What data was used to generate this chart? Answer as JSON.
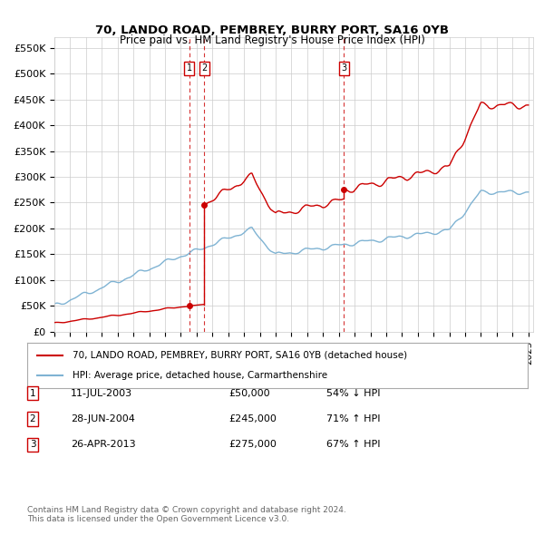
{
  "title": "70, LANDO ROAD, PEMBREY, BURRY PORT, SA16 0YB",
  "subtitle": "Price paid vs. HM Land Registry's House Price Index (HPI)",
  "ylim": [
    0,
    570000
  ],
  "yticks": [
    0,
    50000,
    100000,
    150000,
    200000,
    250000,
    300000,
    350000,
    400000,
    450000,
    500000,
    550000
  ],
  "ytick_labels": [
    "£0",
    "£50K",
    "£100K",
    "£150K",
    "£200K",
    "£250K",
    "£300K",
    "£350K",
    "£400K",
    "£450K",
    "£500K",
    "£550K"
  ],
  "sale_color": "#cc0000",
  "hpi_color": "#7fb3d3",
  "sale_label": "70, LANDO ROAD, PEMBREY, BURRY PORT, SA16 0YB (detached house)",
  "hpi_label": "HPI: Average price, detached house, Carmarthenshire",
  "transactions": [
    {
      "label": "1",
      "date": "11-JUL-2003",
      "price": 50000,
      "pct": "54%",
      "dir": "↓",
      "x": 2003.53
    },
    {
      "label": "2",
      "date": "28-JUN-2004",
      "price": 245000,
      "pct": "71%",
      "dir": "↑",
      "x": 2004.49
    },
    {
      "label": "3",
      "date": "26-APR-2013",
      "price": 275000,
      "pct": "67%",
      "dir": "↑",
      "x": 2013.32
    }
  ],
  "footer": "Contains HM Land Registry data © Crown copyright and database right 2024.\nThis data is licensed under the Open Government Licence v3.0.",
  "background_color": "#ffffff",
  "grid_color": "#cccccc"
}
